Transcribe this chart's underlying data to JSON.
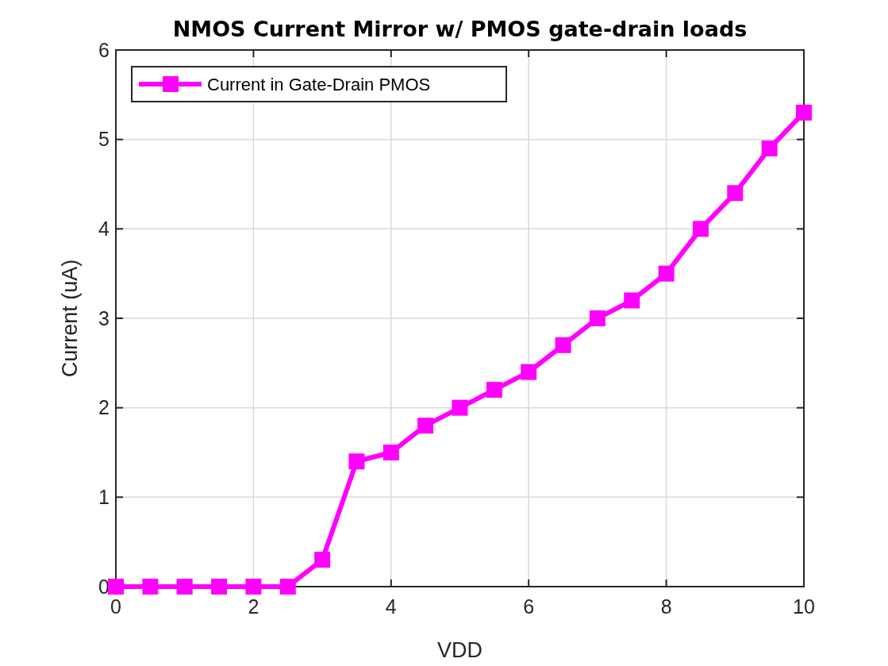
{
  "chart_data": {
    "type": "line",
    "title": "NMOS Current Mirror w/ PMOS gate-drain loads",
    "xlabel": "VDD",
    "ylabel": "Current (uA)",
    "x": [
      0,
      0.5,
      1,
      1.5,
      2,
      2.5,
      3,
      3.5,
      4,
      4.5,
      5,
      5.5,
      6,
      6.5,
      7,
      7.5,
      8,
      8.5,
      9,
      9.5,
      10
    ],
    "series": [
      {
        "name": "Current in Gate-Drain PMOS",
        "color": "#ff00ff",
        "values": [
          0,
          0,
          0,
          0,
          0,
          0,
          0.3,
          1.4,
          1.5,
          1.8,
          2.0,
          2.2,
          2.4,
          2.7,
          3.0,
          3.2,
          3.5,
          4.0,
          4.4,
          4.9,
          5.3
        ]
      }
    ],
    "xlim": [
      0,
      10
    ],
    "xticks": [
      0,
      2,
      4,
      6,
      8,
      10
    ],
    "ylim": [
      0,
      6
    ],
    "yticks": [
      0,
      1,
      2,
      3,
      4,
      5,
      6
    ],
    "grid": true,
    "legend": "top left",
    "marker": "square",
    "line_style": "solid"
  }
}
